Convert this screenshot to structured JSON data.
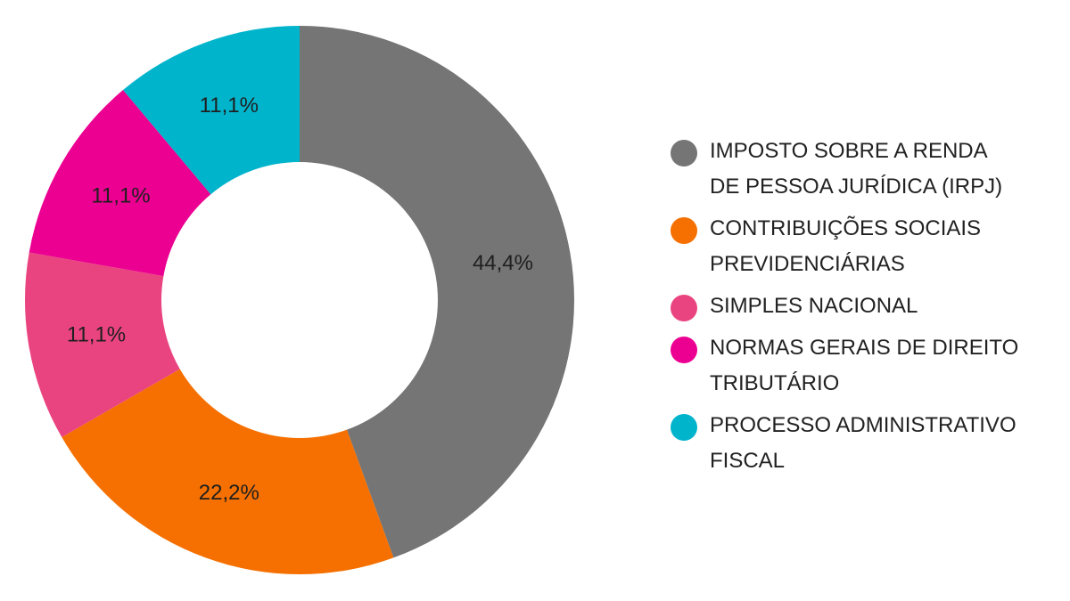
{
  "chart_data": {
    "type": "pie",
    "donut": true,
    "start_angle_deg": 0,
    "direction": "clockwise",
    "legend_position": "right",
    "categories": [
      "IMPOSTO SOBRE A RENDA\nDE PESSOA JURÍDICA (IRPJ)",
      "CONTRIBUIÇÕES SOCIAIS\nPREVIDENCIÁRIAS",
      "SIMPLES NACIONAL",
      "NORMAS GERAIS DE DIREITO\nTRIBUTÁRIO",
      "PROCESSO ADMINISTRATIVO\nFISCAL"
    ],
    "values": [
      44.4,
      22.2,
      11.1,
      11.1,
      11.1
    ],
    "labels": [
      "44,4%",
      "22,2%",
      "11,1%",
      "11,1%",
      "11,1%"
    ],
    "colors": [
      "#757575",
      "#f57000",
      "#ea4480",
      "#eb0091",
      "#00b4cc"
    ]
  }
}
